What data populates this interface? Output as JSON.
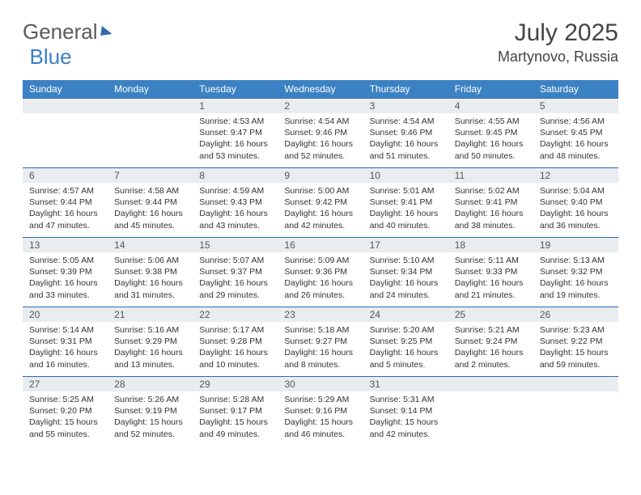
{
  "brand": {
    "part1": "General",
    "part2": "Blue"
  },
  "title": "July 2025",
  "location": "Martynovo, Russia",
  "colors": {
    "header_bg": "#3b82c4",
    "header_text": "#ffffff",
    "row_border": "#2e6bb0",
    "daynum_bg": "#e9edf0",
    "body_bg": "#ffffff"
  },
  "weekdays": [
    "Sunday",
    "Monday",
    "Tuesday",
    "Wednesday",
    "Thursday",
    "Friday",
    "Saturday"
  ],
  "weeks": [
    [
      null,
      null,
      {
        "n": "1",
        "sr": "4:53 AM",
        "ss": "9:47 PM",
        "dl": "16 hours and 53 minutes."
      },
      {
        "n": "2",
        "sr": "4:54 AM",
        "ss": "9:46 PM",
        "dl": "16 hours and 52 minutes."
      },
      {
        "n": "3",
        "sr": "4:54 AM",
        "ss": "9:46 PM",
        "dl": "16 hours and 51 minutes."
      },
      {
        "n": "4",
        "sr": "4:55 AM",
        "ss": "9:45 PM",
        "dl": "16 hours and 50 minutes."
      },
      {
        "n": "5",
        "sr": "4:56 AM",
        "ss": "9:45 PM",
        "dl": "16 hours and 48 minutes."
      }
    ],
    [
      {
        "n": "6",
        "sr": "4:57 AM",
        "ss": "9:44 PM",
        "dl": "16 hours and 47 minutes."
      },
      {
        "n": "7",
        "sr": "4:58 AM",
        "ss": "9:44 PM",
        "dl": "16 hours and 45 minutes."
      },
      {
        "n": "8",
        "sr": "4:59 AM",
        "ss": "9:43 PM",
        "dl": "16 hours and 43 minutes."
      },
      {
        "n": "9",
        "sr": "5:00 AM",
        "ss": "9:42 PM",
        "dl": "16 hours and 42 minutes."
      },
      {
        "n": "10",
        "sr": "5:01 AM",
        "ss": "9:41 PM",
        "dl": "16 hours and 40 minutes."
      },
      {
        "n": "11",
        "sr": "5:02 AM",
        "ss": "9:41 PM",
        "dl": "16 hours and 38 minutes."
      },
      {
        "n": "12",
        "sr": "5:04 AM",
        "ss": "9:40 PM",
        "dl": "16 hours and 36 minutes."
      }
    ],
    [
      {
        "n": "13",
        "sr": "5:05 AM",
        "ss": "9:39 PM",
        "dl": "16 hours and 33 minutes."
      },
      {
        "n": "14",
        "sr": "5:06 AM",
        "ss": "9:38 PM",
        "dl": "16 hours and 31 minutes."
      },
      {
        "n": "15",
        "sr": "5:07 AM",
        "ss": "9:37 PM",
        "dl": "16 hours and 29 minutes."
      },
      {
        "n": "16",
        "sr": "5:09 AM",
        "ss": "9:36 PM",
        "dl": "16 hours and 26 minutes."
      },
      {
        "n": "17",
        "sr": "5:10 AM",
        "ss": "9:34 PM",
        "dl": "16 hours and 24 minutes."
      },
      {
        "n": "18",
        "sr": "5:11 AM",
        "ss": "9:33 PM",
        "dl": "16 hours and 21 minutes."
      },
      {
        "n": "19",
        "sr": "5:13 AM",
        "ss": "9:32 PM",
        "dl": "16 hours and 19 minutes."
      }
    ],
    [
      {
        "n": "20",
        "sr": "5:14 AM",
        "ss": "9:31 PM",
        "dl": "16 hours and 16 minutes."
      },
      {
        "n": "21",
        "sr": "5:16 AM",
        "ss": "9:29 PM",
        "dl": "16 hours and 13 minutes."
      },
      {
        "n": "22",
        "sr": "5:17 AM",
        "ss": "9:28 PM",
        "dl": "16 hours and 10 minutes."
      },
      {
        "n": "23",
        "sr": "5:18 AM",
        "ss": "9:27 PM",
        "dl": "16 hours and 8 minutes."
      },
      {
        "n": "24",
        "sr": "5:20 AM",
        "ss": "9:25 PM",
        "dl": "16 hours and 5 minutes."
      },
      {
        "n": "25",
        "sr": "5:21 AM",
        "ss": "9:24 PM",
        "dl": "16 hours and 2 minutes."
      },
      {
        "n": "26",
        "sr": "5:23 AM",
        "ss": "9:22 PM",
        "dl": "15 hours and 59 minutes."
      }
    ],
    [
      {
        "n": "27",
        "sr": "5:25 AM",
        "ss": "9:20 PM",
        "dl": "15 hours and 55 minutes."
      },
      {
        "n": "28",
        "sr": "5:26 AM",
        "ss": "9:19 PM",
        "dl": "15 hours and 52 minutes."
      },
      {
        "n": "29",
        "sr": "5:28 AM",
        "ss": "9:17 PM",
        "dl": "15 hours and 49 minutes."
      },
      {
        "n": "30",
        "sr": "5:29 AM",
        "ss": "9:16 PM",
        "dl": "15 hours and 46 minutes."
      },
      {
        "n": "31",
        "sr": "5:31 AM",
        "ss": "9:14 PM",
        "dl": "15 hours and 42 minutes."
      },
      null,
      null
    ]
  ],
  "labels": {
    "sunrise": "Sunrise:",
    "sunset": "Sunset:",
    "daylight": "Daylight:"
  }
}
